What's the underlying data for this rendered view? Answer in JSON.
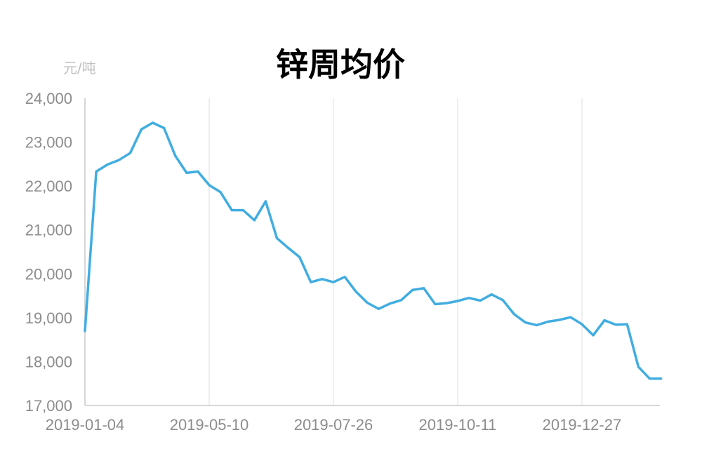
{
  "chart_data": {
    "type": "line",
    "title": "锌周均价",
    "ylabel": "元/吨",
    "ylim": [
      17000,
      24000
    ],
    "yticks": [
      "24,000",
      "23,000",
      "22,000",
      "21,000",
      "20,000",
      "19,000",
      "18,000",
      "17,000"
    ],
    "ytick_values": [
      24000,
      23000,
      22000,
      21000,
      20000,
      19000,
      18000,
      17000
    ],
    "xticks": [
      "2019-01-04",
      "2019-05-10",
      "2019-07-26",
      "2019-10-11",
      "2019-12-27"
    ],
    "xtick_index": [
      0,
      11,
      22,
      33,
      44
    ],
    "grid": "vertical",
    "series": [
      {
        "color": "#41ade0",
        "values": [
          18700,
          22330,
          22490,
          22590,
          22750,
          23290,
          23440,
          23320,
          22690,
          22300,
          22330,
          22020,
          21860,
          21450,
          21450,
          21220,
          21650,
          20810,
          20590,
          20380,
          19810,
          19880,
          19810,
          19930,
          19590,
          19340,
          19200,
          19320,
          19400,
          19630,
          19670,
          19310,
          19330,
          19380,
          19450,
          19390,
          19530,
          19400,
          19080,
          18890,
          18830,
          18910,
          18950,
          19010,
          18850,
          18600,
          18940,
          18840,
          18850,
          17880,
          17610,
          17610
        ]
      }
    ]
  }
}
